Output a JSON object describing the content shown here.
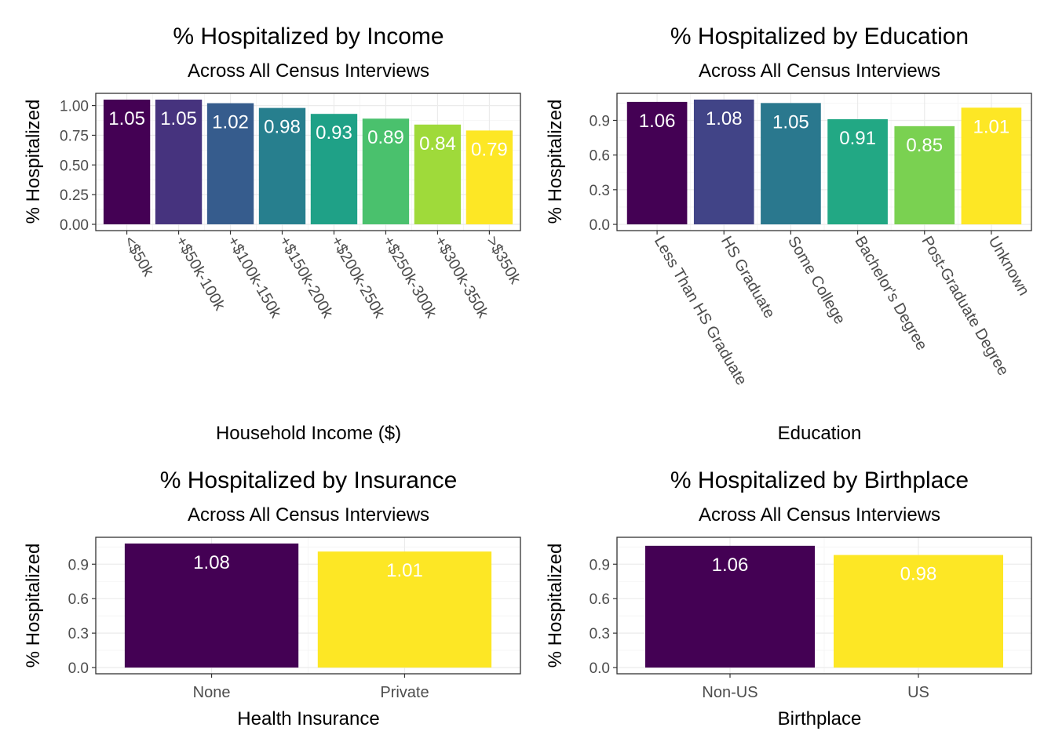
{
  "chart_data": [
    {
      "type": "bar",
      "title": "% Hospitalized by Income",
      "subtitle": "Across All Census Interviews",
      "xlabel": "Household Income ($)",
      "ylabel": "% Hospitalized",
      "categories": [
        "<$50k",
        "+$50k-100k",
        "+$100k-150k",
        "+$150k-200k",
        "+$200k-250k",
        "+$250k-300k",
        "+$300k-350k",
        ">$350k"
      ],
      "values": [
        1.05,
        1.05,
        1.02,
        0.98,
        0.93,
        0.89,
        0.84,
        0.79
      ],
      "value_labels": [
        "1.05",
        "1.05",
        "1.02",
        "0.98",
        "0.93",
        "0.89",
        "0.84",
        "0.79"
      ],
      "yticks": [
        "0.00",
        "0.25",
        "0.50",
        "0.75",
        "1.00"
      ],
      "ylim": [
        -0.053,
        1.103
      ],
      "colors": [
        "#440154",
        "#46337E",
        "#365C8D",
        "#277F8E",
        "#1FA187",
        "#4AC16D",
        "#9FDA3A",
        "#FDE725"
      ],
      "x_tick_rotation": "rotated",
      "grid": true
    },
    {
      "type": "bar",
      "title": "% Hospitalized by Education",
      "subtitle": "Across All Census Interviews",
      "xlabel": "Education",
      "ylabel": "% Hospitalized",
      "categories": [
        "Less Than HS Graduate",
        "HS Graduate",
        "Some College",
        "Bachelor's Degree",
        "Post-Graduate Degree",
        "Unknown"
      ],
      "values": [
        1.06,
        1.08,
        1.05,
        0.91,
        0.85,
        1.01
      ],
      "value_labels": [
        "1.06",
        "1.08",
        "1.05",
        "0.91",
        "0.85",
        "1.01"
      ],
      "yticks": [
        "0.0",
        "0.3",
        "0.6",
        "0.9"
      ],
      "ylim": [
        -0.054,
        1.134
      ],
      "colors": [
        "#440154",
        "#414487",
        "#2A788E",
        "#22A884",
        "#7AD151",
        "#FDE725"
      ],
      "x_tick_rotation": "rotated",
      "grid": true
    },
    {
      "type": "bar",
      "title": "% Hospitalized by Insurance",
      "subtitle": "Across All Census Interviews",
      "xlabel": "Health Insurance",
      "ylabel": "% Hospitalized",
      "categories": [
        "None",
        "Private"
      ],
      "values": [
        1.08,
        1.01
      ],
      "value_labels": [
        "1.08",
        "1.01"
      ],
      "yticks": [
        "0.0",
        "0.3",
        "0.6",
        "0.9"
      ],
      "ylim": [
        -0.054,
        1.134
      ],
      "colors": [
        "#440154",
        "#FDE725"
      ],
      "grid": true
    },
    {
      "type": "bar",
      "title": "% Hospitalized by Birthplace",
      "subtitle": "Across All Census Interviews",
      "xlabel": "Birthplace",
      "ylabel": "% Hospitalized",
      "categories": [
        "Non-US",
        "US"
      ],
      "values": [
        1.06,
        0.98
      ],
      "value_labels": [
        "1.06",
        "0.98"
      ],
      "yticks": [
        "0.0",
        "0.3",
        "0.6",
        "0.9"
      ],
      "ylim": [
        -0.054,
        1.134
      ],
      "colors": [
        "#440154",
        "#FDE725"
      ],
      "grid": true
    }
  ]
}
